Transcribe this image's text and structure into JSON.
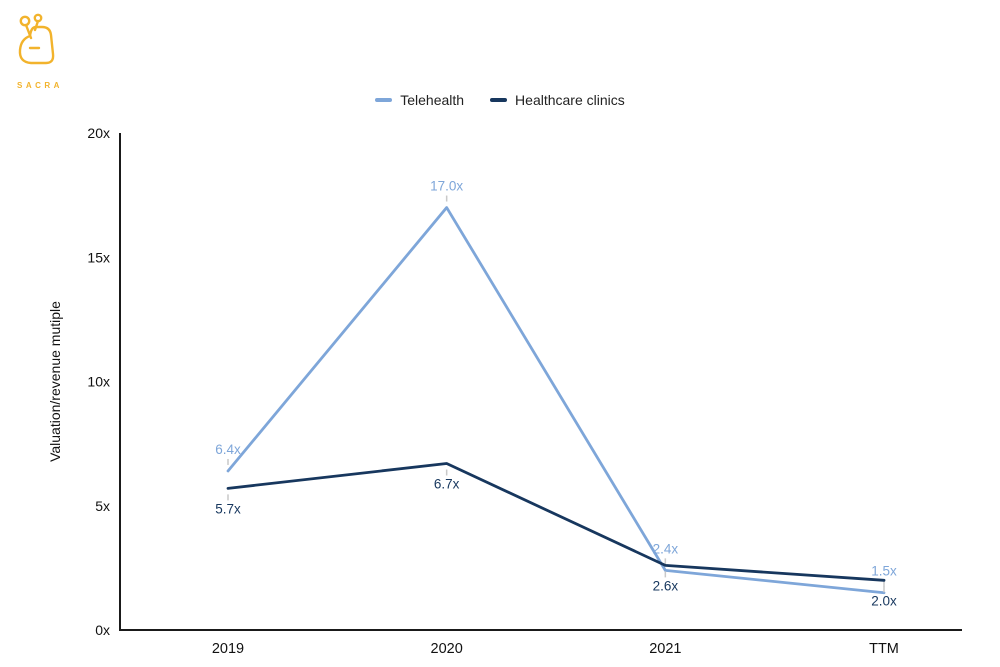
{
  "logo": {
    "brand": "SACRA"
  },
  "chart_data": {
    "type": "line",
    "title": "",
    "categories": [
      "2019",
      "2020",
      "2021",
      "TTM"
    ],
    "series": [
      {
        "name": "Telehealth",
        "color": "#7ea6d9",
        "values": [
          6.4,
          17.0,
          2.4,
          1.5
        ],
        "labels": [
          "6.4x",
          "17.0x",
          "2.4x",
          "1.5x"
        ],
        "label_side": "above"
      },
      {
        "name": "Healthcare clinics",
        "color": "#17375e",
        "values": [
          5.7,
          6.7,
          2.6,
          2.0
        ],
        "labels": [
          "5.7x",
          "6.7x",
          "2.6x",
          "2.0x"
        ],
        "label_side": "below"
      }
    ],
    "xlabel": "",
    "ylabel": "Valuation/revenue mutiple",
    "ylim": [
      0,
      20
    ],
    "yticks": [
      {
        "value": 0,
        "label": "0x"
      },
      {
        "value": 5,
        "label": "5x"
      },
      {
        "value": 10,
        "label": "10x"
      },
      {
        "value": 15,
        "label": "15x"
      },
      {
        "value": 20,
        "label": "20x"
      }
    ],
    "legend_position": "top-center",
    "grid": false,
    "axis_color": "#1a1a1a"
  }
}
